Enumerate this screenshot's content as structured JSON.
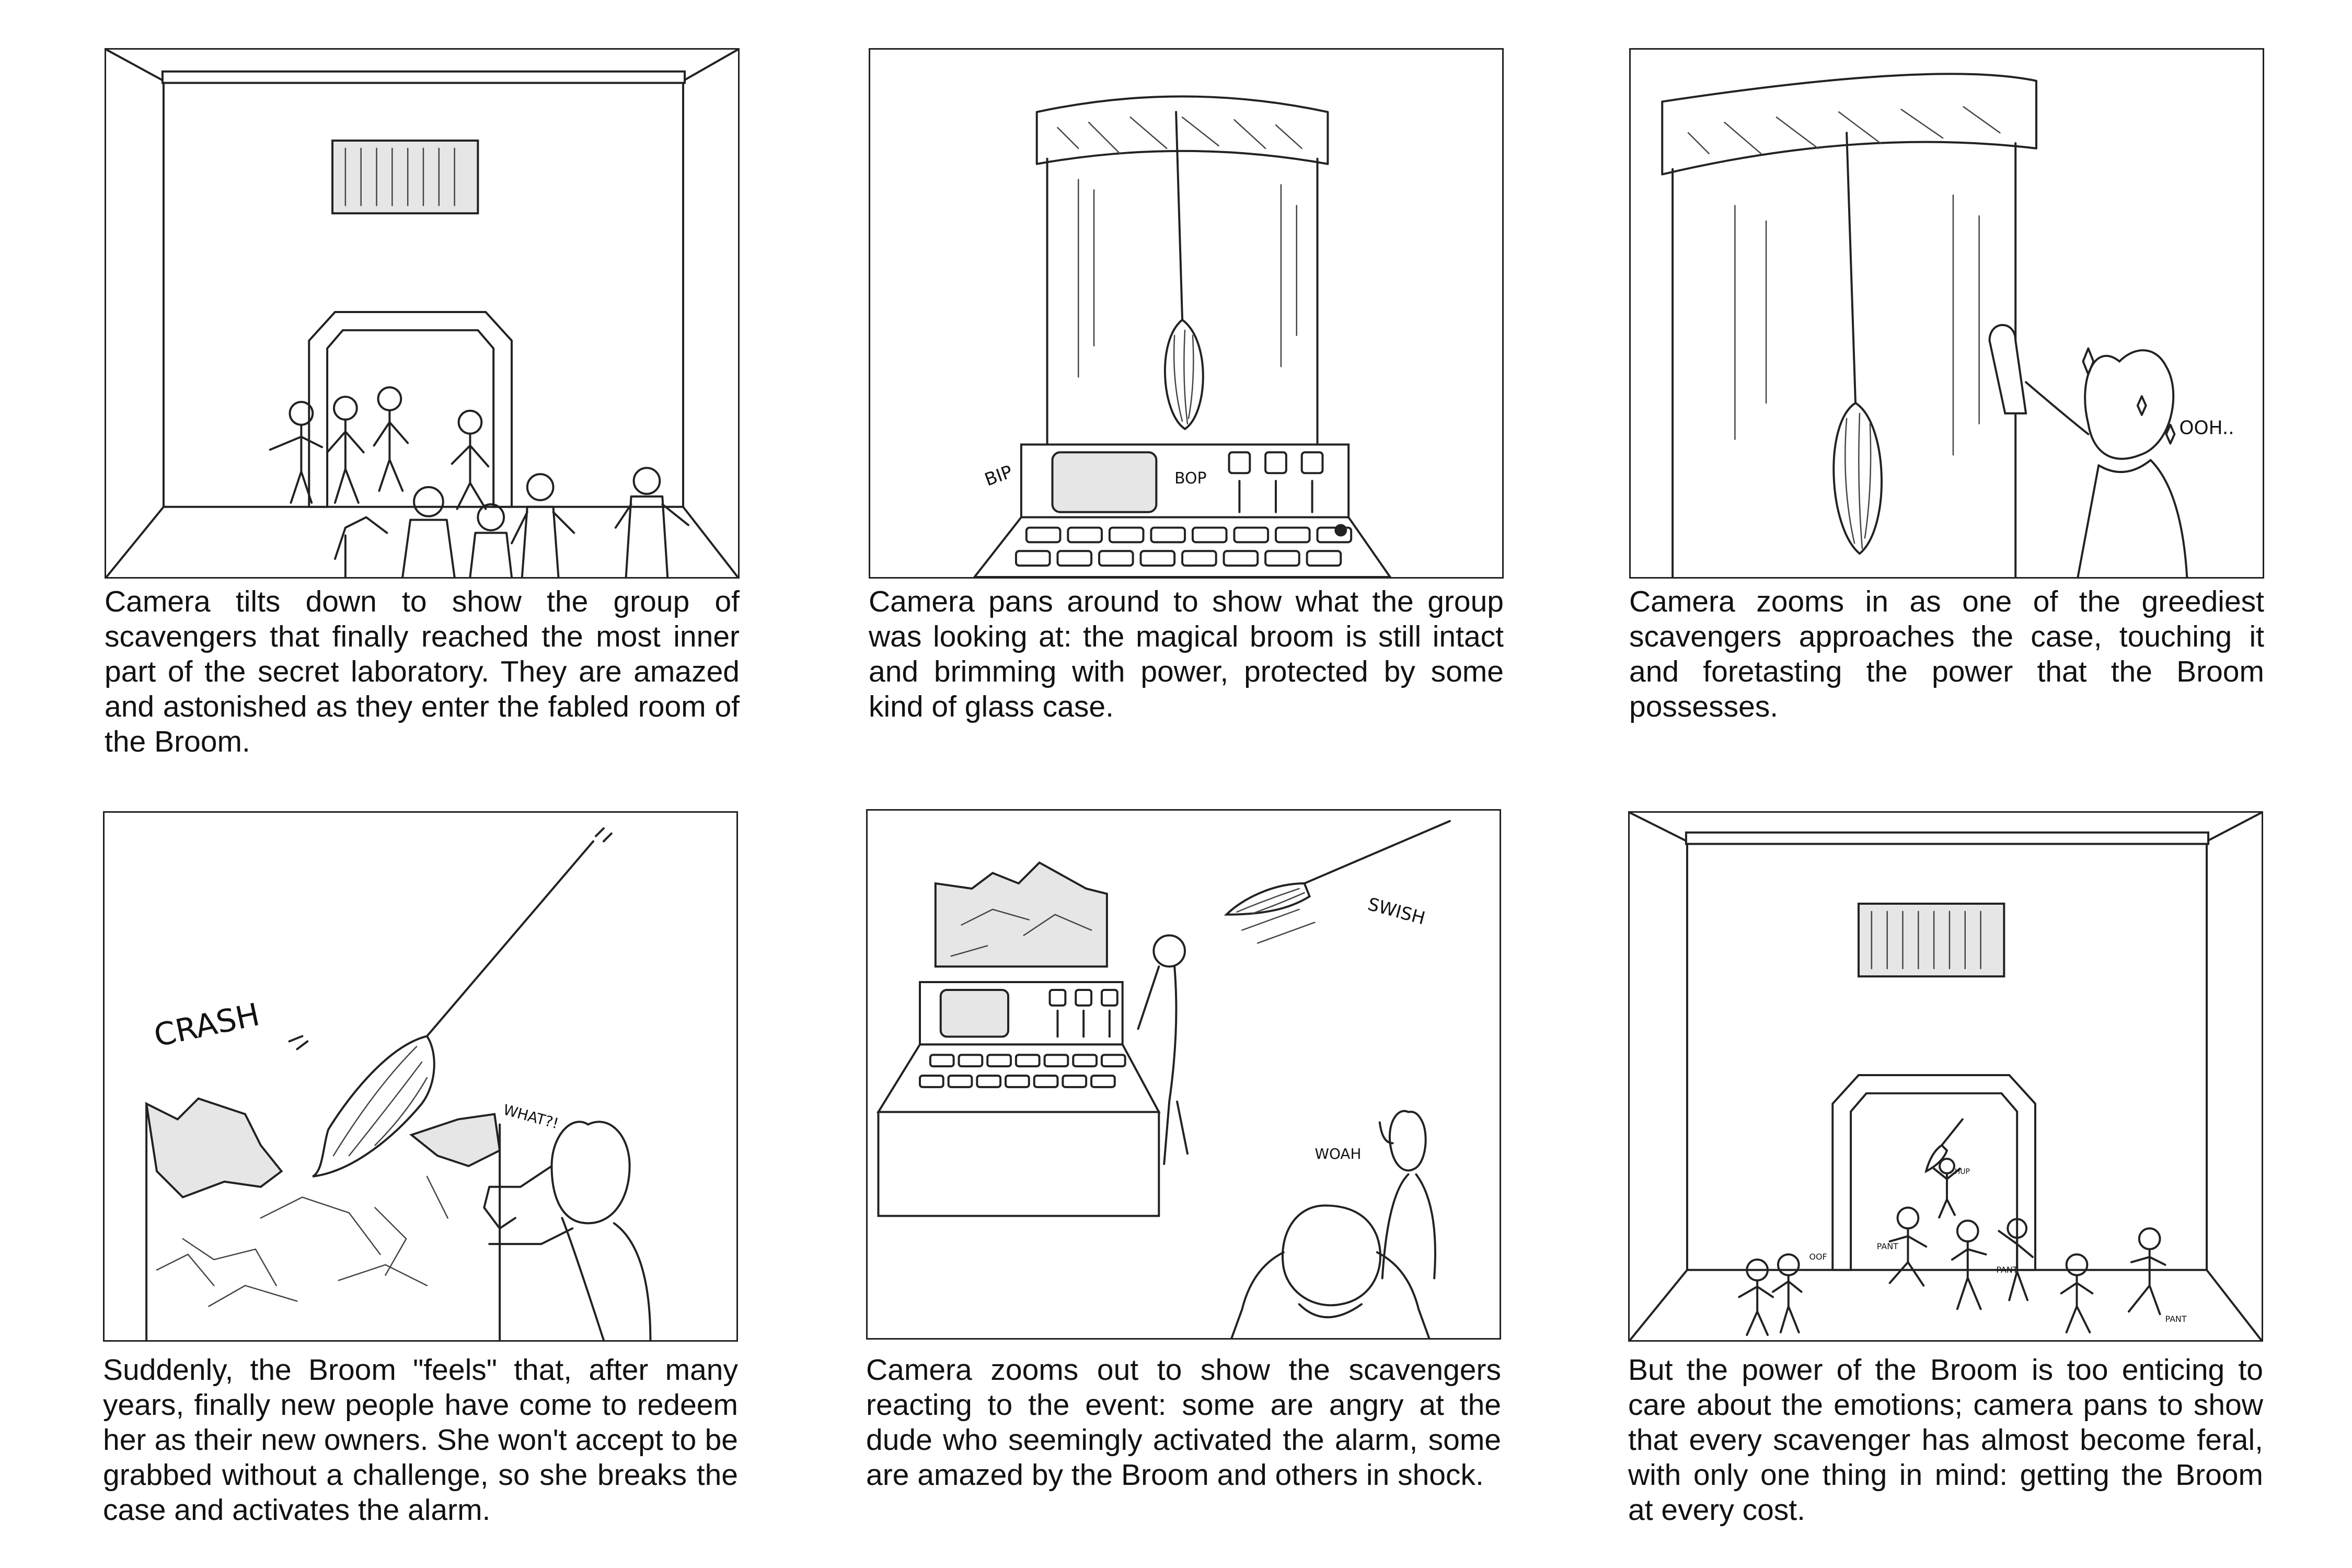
{
  "panels": [
    {
      "caption": "Camera tilts down to show the group of scavengers that finally reached the most inner part of the secret laboratory. They are amazed and astonished as they enter the fabled room of the Broom."
    },
    {
      "caption": "Camera pans around to show what the group was looking at: the magical broom is still intact and brimming with power, protected by some kind of glass case.",
      "sfx": [
        "BIP",
        "BOP"
      ]
    },
    {
      "caption": "Camera zooms in as one of the greediest scavengers approaches the case, touching it and foretasting the power that the Broom possesses.",
      "sfx": [
        "OOH.."
      ]
    },
    {
      "caption": "Suddenly, the Broom \"feels\" that, after many years, finally new people have come to redeem her as their new owners.  She won't accept to be grabbed without a challenge, so she breaks the case and activates the alarm.",
      "sfx": [
        "CRASH",
        "WHAT?!"
      ]
    },
    {
      "caption": "Camera zooms out to show the scavengers reacting to the event: some are angry at the dude who seemingly activated the alarm, some are amazed by the Broom and others in shock.",
      "sfx": [
        "SWISH",
        "WOAH"
      ]
    },
    {
      "caption": "But the power of the Broom is too enticing to care about the emotions; camera pans to show that every scavenger has almost become feral, with only one thing in mind: getting the Broom at every cost.",
      "sfx": [
        "PANT",
        "OOF",
        "HUP",
        "PANT",
        "PANT"
      ]
    }
  ]
}
